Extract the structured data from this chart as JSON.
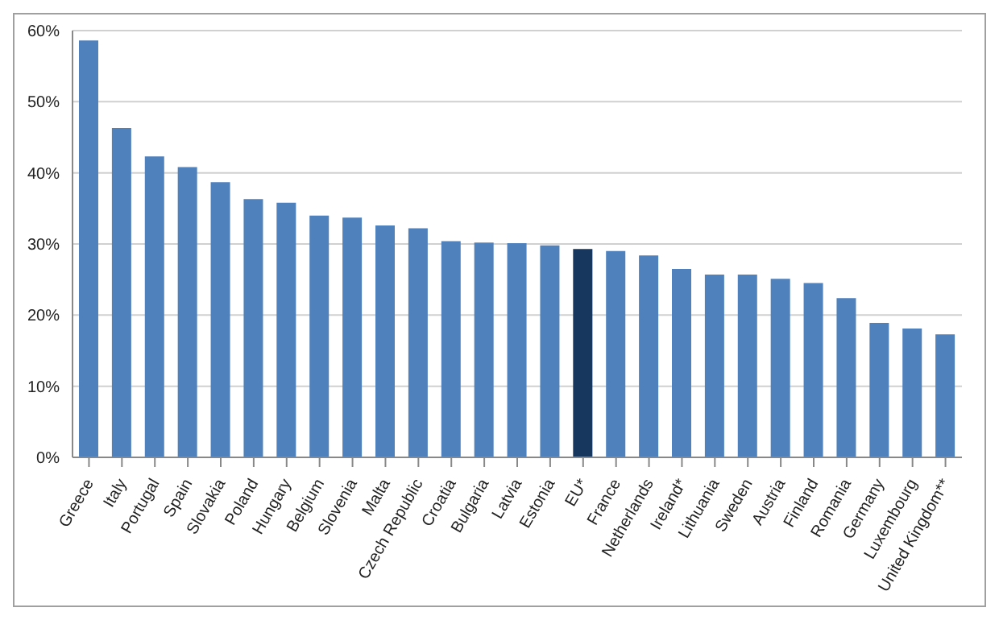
{
  "chart_data": {
    "type": "bar",
    "categories": [
      "Greece",
      "Italy",
      "Portugal",
      "Spain",
      "Slovakia",
      "Poland",
      "Hungary",
      "Belgium",
      "Slovenia",
      "Malta",
      "Czech Republic",
      "Croatia",
      "Bulgaria",
      "Latvia",
      "Estonia",
      "EU*",
      "France",
      "Netherlands",
      "Ireland*",
      "Lithuania",
      "Sweden",
      "Austria",
      "Finland",
      "Romania",
      "Germany",
      "Luxembourg",
      "United Kingdom**"
    ],
    "values": [
      58.6,
      46.3,
      42.3,
      40.8,
      38.7,
      36.3,
      35.8,
      34.0,
      33.7,
      32.6,
      32.2,
      30.4,
      30.2,
      30.1,
      29.8,
      29.3,
      29.0,
      28.4,
      26.5,
      25.7,
      25.7,
      25.1,
      24.5,
      22.4,
      18.9,
      18.1,
      17.3
    ],
    "colors": [
      "#4f81bd",
      "#4f81bd",
      "#4f81bd",
      "#4f81bd",
      "#4f81bd",
      "#4f81bd",
      "#4f81bd",
      "#4f81bd",
      "#4f81bd",
      "#4f81bd",
      "#4f81bd",
      "#4f81bd",
      "#4f81bd",
      "#4f81bd",
      "#4f81bd",
      "#17375e",
      "#4f81bd",
      "#4f81bd",
      "#4f81bd",
      "#4f81bd",
      "#4f81bd",
      "#4f81bd",
      "#4f81bd",
      "#4f81bd",
      "#4f81bd",
      "#4f81bd",
      "#4f81bd"
    ],
    "ylim": [
      0,
      60
    ],
    "yticks": [
      {
        "value": 0,
        "label": "0%"
      },
      {
        "value": 10,
        "label": "10%"
      },
      {
        "value": 20,
        "label": "20%"
      },
      {
        "value": 30,
        "label": "30%"
      },
      {
        "value": 40,
        "label": "40%"
      },
      {
        "value": 50,
        "label": "50%"
      },
      {
        "value": 60,
        "label": "60%"
      }
    ],
    "grid": "y"
  }
}
